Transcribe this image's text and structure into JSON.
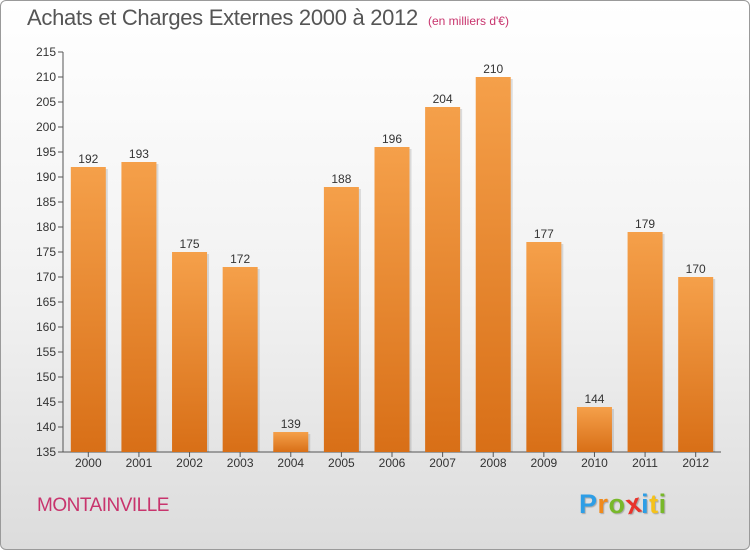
{
  "title": "Achats et Charges Externes 2000 à 2012",
  "unit_note": "(en milliers d'€)",
  "commune": "MONTAINVILLE",
  "logo": {
    "letters": [
      "P",
      "r",
      "o",
      "x",
      "i",
      "t",
      "i"
    ],
    "colors": [
      "#2e9ee6",
      "#f08a1c",
      "#78b82a",
      "#e8342c",
      "#2e9ee6",
      "#f5c21b",
      "#78b82a"
    ]
  },
  "colors": {
    "bar_top": "#f5a04a",
    "bar_bottom": "#d86f17",
    "title": "#555555",
    "accent": "#c8346d"
  },
  "chart_data": {
    "type": "bar",
    "title": "Achats et Charges Externes 2000 à 2012",
    "categories": [
      "2000",
      "2001",
      "2002",
      "2003",
      "2004",
      "2005",
      "2006",
      "2007",
      "2008",
      "2009",
      "2010",
      "2011",
      "2012"
    ],
    "values": [
      192,
      193,
      175,
      172,
      139,
      188,
      196,
      204,
      210,
      177,
      144,
      179,
      170
    ],
    "ylim": [
      135,
      215
    ],
    "yticks": [
      135,
      140,
      145,
      150,
      155,
      160,
      165,
      170,
      175,
      180,
      185,
      190,
      195,
      200,
      205,
      210,
      215
    ],
    "grid": false,
    "xlabel": "",
    "ylabel": ""
  }
}
